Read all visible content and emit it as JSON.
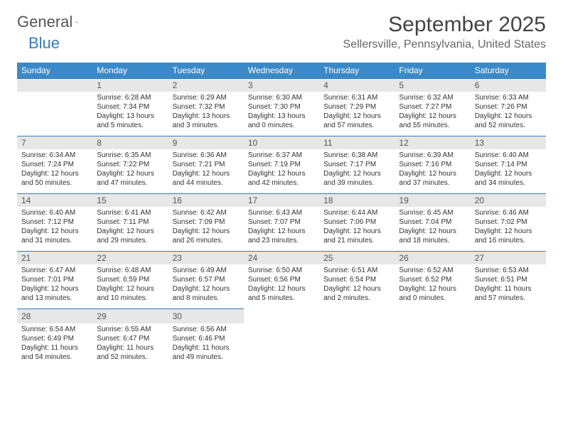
{
  "logo": {
    "general": "General",
    "blue": "Blue"
  },
  "title": "September 2025",
  "location": "Sellersville, Pennsylvania, United States",
  "dow": [
    "Sunday",
    "Monday",
    "Tuesday",
    "Wednesday",
    "Thursday",
    "Friday",
    "Saturday"
  ],
  "colors": {
    "header_bg": "#3a8ac9",
    "daynum_bg": "#e7e7e7",
    "border": "#3a7ab8"
  },
  "weeks": [
    [
      null,
      {
        "n": "1",
        "sr": "Sunrise: 6:28 AM",
        "ss": "Sunset: 7:34 PM",
        "dl1": "Daylight: 13 hours",
        "dl2": "and 5 minutes."
      },
      {
        "n": "2",
        "sr": "Sunrise: 6:29 AM",
        "ss": "Sunset: 7:32 PM",
        "dl1": "Daylight: 13 hours",
        "dl2": "and 3 minutes."
      },
      {
        "n": "3",
        "sr": "Sunrise: 6:30 AM",
        "ss": "Sunset: 7:30 PM",
        "dl1": "Daylight: 13 hours",
        "dl2": "and 0 minutes."
      },
      {
        "n": "4",
        "sr": "Sunrise: 6:31 AM",
        "ss": "Sunset: 7:29 PM",
        "dl1": "Daylight: 12 hours",
        "dl2": "and 57 minutes."
      },
      {
        "n": "5",
        "sr": "Sunrise: 6:32 AM",
        "ss": "Sunset: 7:27 PM",
        "dl1": "Daylight: 12 hours",
        "dl2": "and 55 minutes."
      },
      {
        "n": "6",
        "sr": "Sunrise: 6:33 AM",
        "ss": "Sunset: 7:26 PM",
        "dl1": "Daylight: 12 hours",
        "dl2": "and 52 minutes."
      }
    ],
    [
      {
        "n": "7",
        "sr": "Sunrise: 6:34 AM",
        "ss": "Sunset: 7:24 PM",
        "dl1": "Daylight: 12 hours",
        "dl2": "and 50 minutes."
      },
      {
        "n": "8",
        "sr": "Sunrise: 6:35 AM",
        "ss": "Sunset: 7:22 PM",
        "dl1": "Daylight: 12 hours",
        "dl2": "and 47 minutes."
      },
      {
        "n": "9",
        "sr": "Sunrise: 6:36 AM",
        "ss": "Sunset: 7:21 PM",
        "dl1": "Daylight: 12 hours",
        "dl2": "and 44 minutes."
      },
      {
        "n": "10",
        "sr": "Sunrise: 6:37 AM",
        "ss": "Sunset: 7:19 PM",
        "dl1": "Daylight: 12 hours",
        "dl2": "and 42 minutes."
      },
      {
        "n": "11",
        "sr": "Sunrise: 6:38 AM",
        "ss": "Sunset: 7:17 PM",
        "dl1": "Daylight: 12 hours",
        "dl2": "and 39 minutes."
      },
      {
        "n": "12",
        "sr": "Sunrise: 6:39 AM",
        "ss": "Sunset: 7:16 PM",
        "dl1": "Daylight: 12 hours",
        "dl2": "and 37 minutes."
      },
      {
        "n": "13",
        "sr": "Sunrise: 6:40 AM",
        "ss": "Sunset: 7:14 PM",
        "dl1": "Daylight: 12 hours",
        "dl2": "and 34 minutes."
      }
    ],
    [
      {
        "n": "14",
        "sr": "Sunrise: 6:40 AM",
        "ss": "Sunset: 7:12 PM",
        "dl1": "Daylight: 12 hours",
        "dl2": "and 31 minutes."
      },
      {
        "n": "15",
        "sr": "Sunrise: 6:41 AM",
        "ss": "Sunset: 7:11 PM",
        "dl1": "Daylight: 12 hours",
        "dl2": "and 29 minutes."
      },
      {
        "n": "16",
        "sr": "Sunrise: 6:42 AM",
        "ss": "Sunset: 7:09 PM",
        "dl1": "Daylight: 12 hours",
        "dl2": "and 26 minutes."
      },
      {
        "n": "17",
        "sr": "Sunrise: 6:43 AM",
        "ss": "Sunset: 7:07 PM",
        "dl1": "Daylight: 12 hours",
        "dl2": "and 23 minutes."
      },
      {
        "n": "18",
        "sr": "Sunrise: 6:44 AM",
        "ss": "Sunset: 7:06 PM",
        "dl1": "Daylight: 12 hours",
        "dl2": "and 21 minutes."
      },
      {
        "n": "19",
        "sr": "Sunrise: 6:45 AM",
        "ss": "Sunset: 7:04 PM",
        "dl1": "Daylight: 12 hours",
        "dl2": "and 18 minutes."
      },
      {
        "n": "20",
        "sr": "Sunrise: 6:46 AM",
        "ss": "Sunset: 7:02 PM",
        "dl1": "Daylight: 12 hours",
        "dl2": "and 16 minutes."
      }
    ],
    [
      {
        "n": "21",
        "sr": "Sunrise: 6:47 AM",
        "ss": "Sunset: 7:01 PM",
        "dl1": "Daylight: 12 hours",
        "dl2": "and 13 minutes."
      },
      {
        "n": "22",
        "sr": "Sunrise: 6:48 AM",
        "ss": "Sunset: 6:59 PM",
        "dl1": "Daylight: 12 hours",
        "dl2": "and 10 minutes."
      },
      {
        "n": "23",
        "sr": "Sunrise: 6:49 AM",
        "ss": "Sunset: 6:57 PM",
        "dl1": "Daylight: 12 hours",
        "dl2": "and 8 minutes."
      },
      {
        "n": "24",
        "sr": "Sunrise: 6:50 AM",
        "ss": "Sunset: 6:56 PM",
        "dl1": "Daylight: 12 hours",
        "dl2": "and 5 minutes."
      },
      {
        "n": "25",
        "sr": "Sunrise: 6:51 AM",
        "ss": "Sunset: 6:54 PM",
        "dl1": "Daylight: 12 hours",
        "dl2": "and 2 minutes."
      },
      {
        "n": "26",
        "sr": "Sunrise: 6:52 AM",
        "ss": "Sunset: 6:52 PM",
        "dl1": "Daylight: 12 hours",
        "dl2": "and 0 minutes."
      },
      {
        "n": "27",
        "sr": "Sunrise: 6:53 AM",
        "ss": "Sunset: 6:51 PM",
        "dl1": "Daylight: 11 hours",
        "dl2": "and 57 minutes."
      }
    ],
    [
      {
        "n": "28",
        "sr": "Sunrise: 6:54 AM",
        "ss": "Sunset: 6:49 PM",
        "dl1": "Daylight: 11 hours",
        "dl2": "and 54 minutes."
      },
      {
        "n": "29",
        "sr": "Sunrise: 6:55 AM",
        "ss": "Sunset: 6:47 PM",
        "dl1": "Daylight: 11 hours",
        "dl2": "and 52 minutes."
      },
      {
        "n": "30",
        "sr": "Sunrise: 6:56 AM",
        "ss": "Sunset: 6:46 PM",
        "dl1": "Daylight: 11 hours",
        "dl2": "and 49 minutes."
      },
      null,
      null,
      null,
      null
    ]
  ]
}
